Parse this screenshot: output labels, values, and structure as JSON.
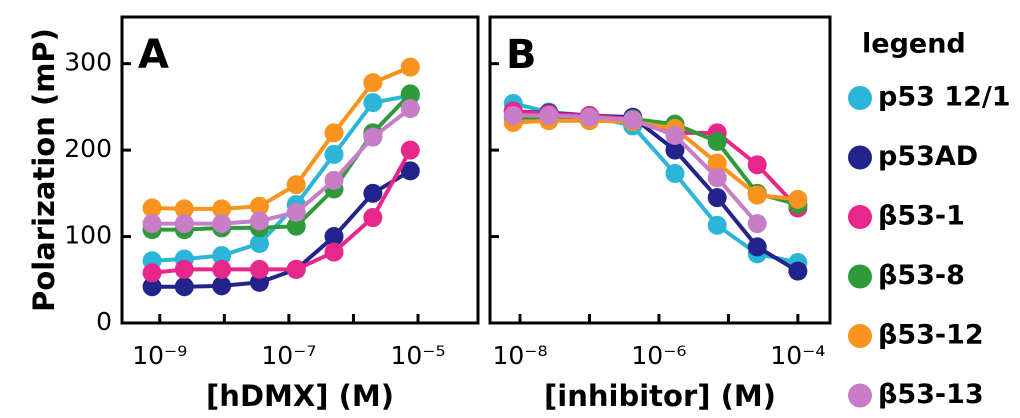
{
  "chart_data": [
    {
      "type": "line",
      "annotation": "A",
      "xlabel": "[hDMX] (M)",
      "ylabel": "Polarization (mP)",
      "xscale": "log",
      "xlim": [
        2.6e-10,
        8.5e-05
      ],
      "ylim": [
        0,
        354
      ],
      "xticks": [
        {
          "value": 1e-09,
          "label": "10⁻⁹"
        },
        {
          "value": 1e-07,
          "label": "10⁻⁷"
        },
        {
          "value": 1e-05,
          "label": "10⁻⁵"
        }
      ],
      "xminor_ticks": [
        1e-08,
        1e-06
      ],
      "yticks": [
        0,
        100,
        200,
        300
      ],
      "show_ytick_labels": true,
      "legend_title": "legend",
      "x": [
        7.6e-10,
        2.4e-09,
        9.1e-09,
        3.5e-08,
        1.3e-07,
        5e-07,
        2e-06,
        7.6e-06
      ],
      "series": [
        {
          "name": "p53 12/1",
          "color": "#2bb5d8",
          "values": [
            72,
            74,
            78,
            92,
            137,
            195,
            255,
            263
          ]
        },
        {
          "name": "p53AD",
          "color": "#23238c",
          "values": [
            42,
            42,
            43,
            47,
            62,
            100,
            150,
            176
          ]
        },
        {
          "name": "β53-1",
          "color": "#e8278a",
          "values": [
            58,
            62,
            62,
            62,
            62,
            82,
            122,
            200
          ]
        },
        {
          "name": "β53-8",
          "color": "#2e9a3a",
          "values": [
            108,
            108,
            110,
            110,
            112,
            155,
            220,
            265
          ]
        },
        {
          "name": "β53-12",
          "color": "#f7931e",
          "values": [
            133,
            132,
            132,
            135,
            160,
            220,
            278,
            296
          ]
        },
        {
          "name": "β53-13",
          "color": "#c77dc8",
          "values": [
            115,
            115,
            115,
            118,
            128,
            165,
            215,
            248
          ]
        }
      ]
    },
    {
      "type": "line",
      "annotation": "B",
      "xlabel": "[inhibitor] (M)",
      "xscale": "log",
      "xlim": [
        3.7e-09,
        0.00029
      ],
      "ylim": [
        0,
        354
      ],
      "xticks": [
        {
          "value": 1e-08,
          "label": "10⁻⁸"
        },
        {
          "value": 1e-06,
          "label": "10⁻⁶"
        },
        {
          "value": 0.0001,
          "label": "10⁻⁴"
        }
      ],
      "xminor_ticks": [
        1e-07,
        1e-05
      ],
      "yticks": [
        0,
        100,
        200,
        300
      ],
      "show_ytick_labels": false,
      "x": [
        8e-09,
        2.6e-08,
        1e-07,
        4.2e-07,
        1.7e-06,
        6.9e-06,
        2.6e-05,
        0.0001
      ],
      "series": [
        {
          "color": "#2bb5d8",
          "values": [
            254,
            244,
            240,
            228,
            173,
            113,
            80,
            70
          ]
        },
        {
          "color": "#23238c",
          "values": [
            245,
            243,
            240,
            238,
            200,
            145,
            88,
            60
          ]
        },
        {
          "color": "#e8278a",
          "values": [
            245,
            242,
            240,
            236,
            220,
            220,
            183,
            133
          ]
        },
        {
          "color": "#2e9a3a",
          "values": [
            237,
            238,
            236,
            236,
            230,
            210,
            150,
            137
          ]
        },
        {
          "color": "#f7931e",
          "values": [
            232,
            234,
            234,
            233,
            225,
            185,
            148,
            143
          ]
        },
        {
          "color": "#c77dc8",
          "values": [
            240,
            240,
            238,
            235,
            217,
            168,
            115,
            null
          ]
        }
      ]
    }
  ]
}
